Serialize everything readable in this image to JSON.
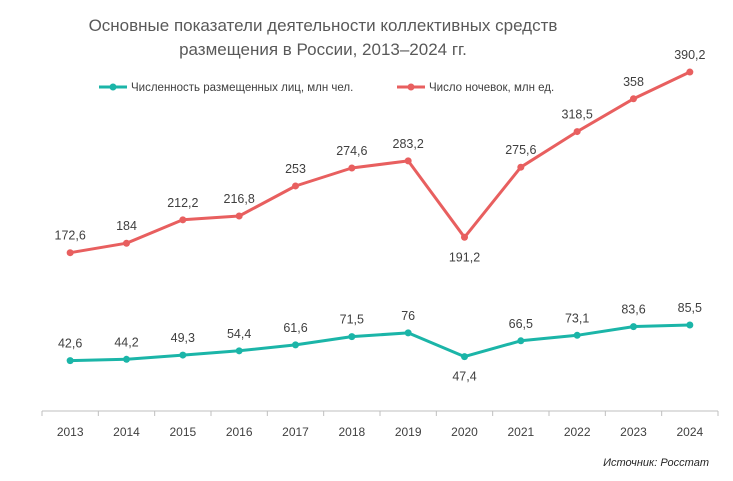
{
  "chart_data": {
    "type": "line",
    "title": "Основные  показатели деятельности  коллективных средств размещения в России,  2013–2024  гг.",
    "title_lines": [
      "Основные  показатели деятельности  коллективных средств",
      "размещения в России,  2013–2024  гг."
    ],
    "xlabel": "",
    "ylabel": "",
    "categories": [
      "2013",
      "2014",
      "2015",
      "2016",
      "2017",
      "2018",
      "2019",
      "2020",
      "2021",
      "2022",
      "2023",
      "2024"
    ],
    "series": [
      {
        "name": "Численность размещенных  лиц, млн чел.",
        "color": "#1bb5a8",
        "values": [
          42.6,
          44.2,
          49.3,
          54.4,
          61.6,
          71.5,
          76,
          47.4,
          66.5,
          73.1,
          83.6,
          85.5
        ],
        "labels": [
          "42,6",
          "44,2",
          "49,3",
          "54,4",
          "61,6",
          "71,5",
          "76",
          "47,4",
          "66,5",
          "73,1",
          "83,6",
          "85,5"
        ]
      },
      {
        "name": "Число ночевок, млн ед.",
        "color": "#e85f5f",
        "values": [
          172.6,
          184,
          212.2,
          216.8,
          253,
          274.6,
          283.2,
          191.2,
          275.6,
          318.5,
          358,
          390.2
        ],
        "labels": [
          "172,6",
          "184",
          "212,2",
          "216,8",
          "253",
          "274,6",
          "283,2",
          "191,2",
          "275,6",
          "318,5",
          "358",
          "390,2"
        ]
      }
    ],
    "ylim": [
      0,
      430
    ],
    "grid": false,
    "legend_position": "top-left",
    "source": "Источник: Росстат"
  }
}
